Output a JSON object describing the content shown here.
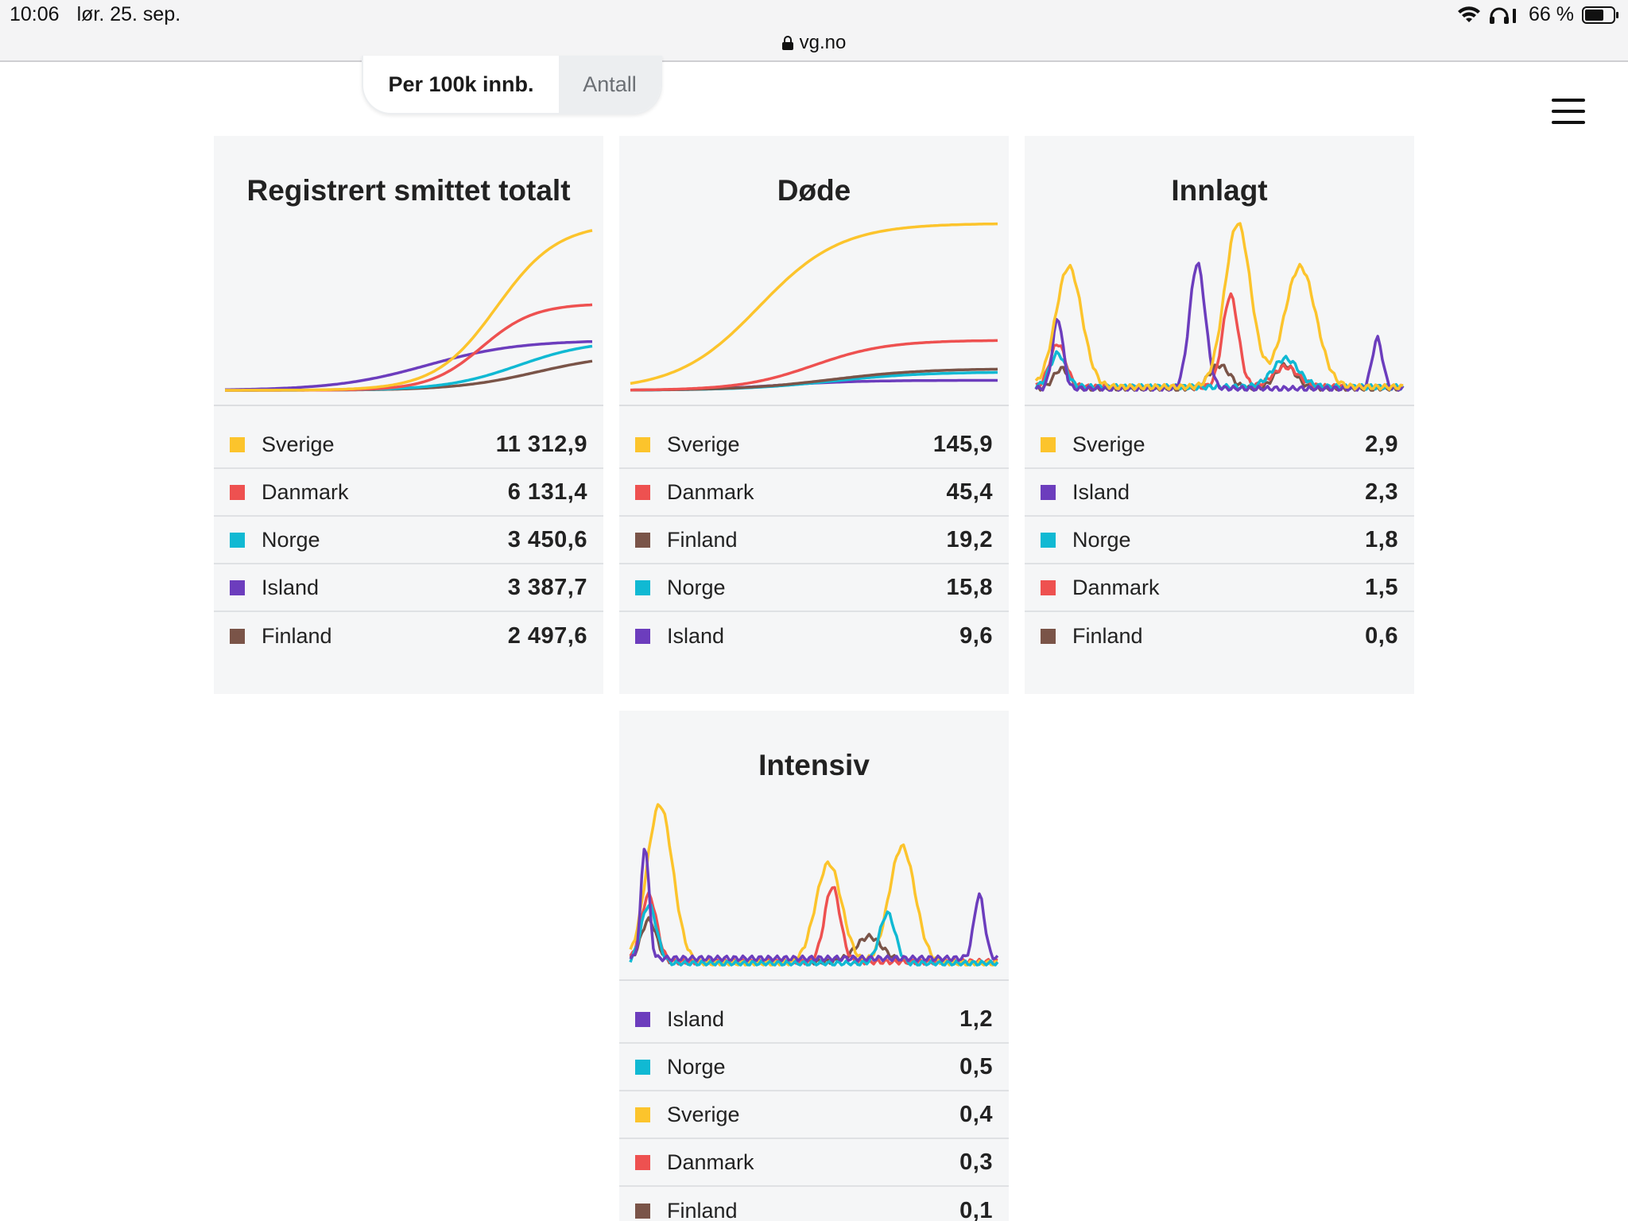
{
  "status_bar": {
    "time": "10:06",
    "date": "lør. 25. sep.",
    "battery": "66 %",
    "url": "vg.no"
  },
  "toggle": {
    "active_label": "Per 100k innb.",
    "inactive_label": "Antall"
  },
  "colors": {
    "Sverige": "#fcc42c",
    "Danmark": "#ee5150",
    "Norge": "#10b9d3",
    "Island": "#6c3dbd",
    "Finland": "#7a5448"
  },
  "cards": [
    {
      "title": "Registrert smittet totalt",
      "legend": [
        {
          "country": "Sverige",
          "value": "11 312,9"
        },
        {
          "country": "Danmark",
          "value": "6 131,4"
        },
        {
          "country": "Norge",
          "value": "3 450,6"
        },
        {
          "country": "Island",
          "value": "3 387,7"
        },
        {
          "country": "Finland",
          "value": "2 497,6"
        }
      ]
    },
    {
      "title": "Døde",
      "legend": [
        {
          "country": "Sverige",
          "value": "145,9"
        },
        {
          "country": "Danmark",
          "value": "45,4"
        },
        {
          "country": "Finland",
          "value": "19,2"
        },
        {
          "country": "Norge",
          "value": "15,8"
        },
        {
          "country": "Island",
          "value": "9,6"
        }
      ]
    },
    {
      "title": "Innlagt",
      "legend": [
        {
          "country": "Sverige",
          "value": "2,9"
        },
        {
          "country": "Island",
          "value": "2,3"
        },
        {
          "country": "Norge",
          "value": "1,8"
        },
        {
          "country": "Danmark",
          "value": "1,5"
        },
        {
          "country": "Finland",
          "value": "0,6"
        }
      ]
    },
    {
      "title": "Intensiv",
      "legend": [
        {
          "country": "Island",
          "value": "1,2"
        },
        {
          "country": "Norge",
          "value": "0,5"
        },
        {
          "country": "Sverige",
          "value": "0,4"
        },
        {
          "country": "Danmark",
          "value": "0,3"
        },
        {
          "country": "Finland",
          "value": "0,1"
        }
      ]
    }
  ]
}
